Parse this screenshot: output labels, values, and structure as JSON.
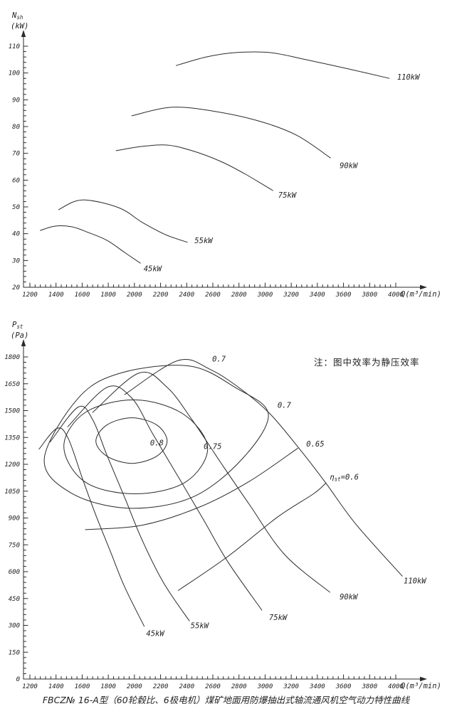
{
  "note": "注：图中效率为静压效率",
  "caption": "FBCZ№ 16-A型（60轮毂比、6极电机）煤矿地面用防爆抽出式轴流通风机空气动力特性曲线",
  "colors": {
    "line": "#2b2b2b",
    "text": "#1f1f1f",
    "bg": "#ffffff"
  },
  "chart_data": [
    {
      "id": "shaft-power",
      "type": "line",
      "title": "",
      "xlabel": "Q(m³/min)",
      "ylabel": {
        "main": "N",
        "sub": "sh",
        "unit": "(kW)"
      },
      "grid": false,
      "legend": "labels-on-curves",
      "x_axis": {
        "minor_step": 40,
        "ticks": [
          1200,
          1400,
          1600,
          1800,
          2000,
          2200,
          2400,
          2600,
          2800,
          3000,
          3200,
          3400,
          3600,
          3800,
          4000
        ]
      },
      "y_axis": {
        "minor_step": 2,
        "ticks": [
          20,
          30,
          40,
          50,
          60,
          70,
          80,
          90,
          100,
          110
        ]
      },
      "series": [
        {
          "name": "45kW",
          "label_at": [
            2070,
            26
          ],
          "points": [
            [
              1280,
              41.2
            ],
            [
              1390,
              42.8
            ],
            [
              1520,
              42.6
            ],
            [
              1650,
              40.4
            ],
            [
              1790,
              37.5
            ],
            [
              1925,
              33
            ],
            [
              2045,
              29
            ]
          ]
        },
        {
          "name": "55kW",
          "label_at": [
            2460,
            36.5
          ],
          "points": [
            [
              1420,
              49
            ],
            [
              1600,
              52.6
            ],
            [
              1880,
              49.7
            ],
            [
              2060,
              44.2
            ],
            [
              2240,
              39.6
            ],
            [
              2405,
              36.8
            ]
          ]
        },
        {
          "name": "75kW",
          "label_at": [
            3100,
            53.5
          ],
          "points": [
            [
              1860,
              71
            ],
            [
              2060,
              72.6
            ],
            [
              2250,
              73.1
            ],
            [
              2440,
              71
            ],
            [
              2660,
              67
            ],
            [
              2850,
              62.2
            ],
            [
              3060,
              56.1
            ]
          ]
        },
        {
          "name": "90kW",
          "label_at": [
            3570,
            64.5
          ],
          "points": [
            [
              1980,
              84
            ],
            [
              2280,
              87.2
            ],
            [
              2600,
              85.8
            ],
            [
              2950,
              82.1
            ],
            [
              3240,
              76.8
            ],
            [
              3500,
              68.3
            ]
          ]
        },
        {
          "name": "110kW",
          "label_at": [
            4010,
            97.5
          ],
          "points": [
            [
              2320,
              102.8
            ],
            [
              2550,
              106
            ],
            [
              2770,
              107.6
            ],
            [
              3040,
              107.6
            ],
            [
              3310,
              105
            ],
            [
              3640,
              101.5
            ],
            [
              3950,
              98
            ]
          ]
        }
      ]
    },
    {
      "id": "static-pressure",
      "type": "line",
      "title": "",
      "xlabel": "Q(m³/min)",
      "ylabel": {
        "main": "P",
        "sub": "st",
        "unit": "(Pa)"
      },
      "grid": false,
      "legend": "labels-on-curves",
      "x_axis": {
        "minor_step": 40,
        "ticks": [
          1200,
          1400,
          1600,
          1800,
          2000,
          2200,
          2400,
          2600,
          2800,
          3000,
          3200,
          3400,
          3600,
          3800,
          4000
        ]
      },
      "y_axis": {
        "minor_step": 30,
        "ticks": [
          0,
          150,
          300,
          450,
          600,
          750,
          900,
          1050,
          1200,
          1350,
          1500,
          1650,
          1800
        ]
      },
      "series": [
        {
          "name": "45kW",
          "label_at": [
            2090,
            240
          ],
          "points": [
            [
              1270,
              1285
            ],
            [
              1405,
              1400
            ],
            [
              1490,
              1350
            ],
            [
              1600,
              1125
            ],
            [
              1705,
              915
            ],
            [
              1815,
              715
            ],
            [
              1925,
              515
            ],
            [
              2075,
              295
            ]
          ]
        },
        {
          "name": "55kW",
          "label_at": [
            2430,
            285
          ],
          "points": [
            [
              1355,
              1325
            ],
            [
              1570,
              1520
            ],
            [
              1680,
              1450
            ],
            [
              1790,
              1250
            ],
            [
              1925,
              1015
            ],
            [
              2060,
              775
            ],
            [
              2225,
              535
            ],
            [
              2420,
              325
            ]
          ]
        },
        {
          "name": "75kW",
          "label_at": [
            3030,
            330
          ],
          "points": [
            [
              1490,
              1410
            ],
            [
              1790,
              1630
            ],
            [
              1980,
              1570
            ],
            [
              2140,
              1370
            ],
            [
              2335,
              1130
            ],
            [
              2525,
              895
            ],
            [
              2715,
              655
            ],
            [
              2975,
              385
            ]
          ]
        },
        {
          "name": "90kW",
          "label_at": [
            3570,
            445
          ],
          "points": [
            [
              1680,
              1490
            ],
            [
              2035,
              1710
            ],
            [
              2250,
              1630
            ],
            [
              2440,
              1450
            ],
            [
              2660,
              1210
            ],
            [
              2880,
              975
            ],
            [
              3150,
              695
            ],
            [
              3495,
              485
            ]
          ]
        },
        {
          "name": "110kW",
          "label_at": [
            4060,
            535
          ],
          "points": [
            [
              1925,
              1590
            ],
            [
              2335,
              1780
            ],
            [
              2580,
              1730
            ],
            [
              2825,
              1615
            ],
            [
              3040,
              1480
            ],
            [
              3270,
              1280
            ],
            [
              3465,
              1095
            ],
            [
              3695,
              865
            ],
            [
              4050,
              575
            ]
          ]
        }
      ],
      "contours": [
        {
          "value": 0.8,
          "closed": true,
          "points": [
            [
              1705,
              1330
            ],
            [
              1790,
              1420
            ],
            [
              1980,
              1460
            ],
            [
              2170,
              1420
            ],
            [
              2250,
              1330
            ],
            [
              2170,
              1245
            ],
            [
              1980,
              1205
            ],
            [
              1790,
              1245
            ]
          ],
          "labels": [
            {
              "text": "0.8",
              "at": [
                2120,
                1305
              ]
            }
          ]
        },
        {
          "value": 0.75,
          "closed": true,
          "points": [
            [
              1460,
              1300
            ],
            [
              1625,
              1490
            ],
            [
              2005,
              1560
            ],
            [
              2375,
              1480
            ],
            [
              2560,
              1290
            ],
            [
              2390,
              1100
            ],
            [
              2005,
              1035
            ],
            [
              1625,
              1100
            ]
          ],
          "labels": [
            {
              "text": "0.75",
              "at": [
                2530,
                1285
              ]
            }
          ]
        },
        {
          "value": 0.7,
          "closed": true,
          "points": [
            [
              1310,
              1230
            ],
            [
              1570,
              1570
            ],
            [
              1895,
              1710
            ],
            [
              2415,
              1750
            ],
            [
              2770,
              1630
            ],
            [
              3025,
              1480
            ],
            [
              2825,
              1230
            ],
            [
              2440,
              1015
            ],
            [
              1950,
              955
            ],
            [
              1515,
              1040
            ]
          ],
          "labels": [
            {
              "text": "0.7",
              "at": [
                2595,
                1775
              ]
            },
            {
              "text": "0.7",
              "at": [
                3095,
                1515
              ]
            }
          ]
        },
        {
          "value": 0.65,
          "closed": false,
          "points": [
            [
              1625,
              835
            ],
            [
              2060,
              860
            ],
            [
              2495,
              960
            ],
            [
              2880,
              1105
            ],
            [
              3250,
              1290
            ]
          ],
          "labels": [
            {
              "text": "0.65",
              "at": [
                3315,
                1300
              ]
            }
          ]
        },
        {
          "value": 0.6,
          "closed": false,
          "points": [
            [
              2335,
              495
            ],
            [
              2715,
              685
            ],
            [
              3095,
              905
            ],
            [
              3370,
              1035
            ],
            [
              3465,
              1095
            ]
          ],
          "labels": [
            {
              "text": "ηst=0.6",
              "at": [
                3495,
                1115
              ]
            }
          ]
        }
      ]
    }
  ]
}
